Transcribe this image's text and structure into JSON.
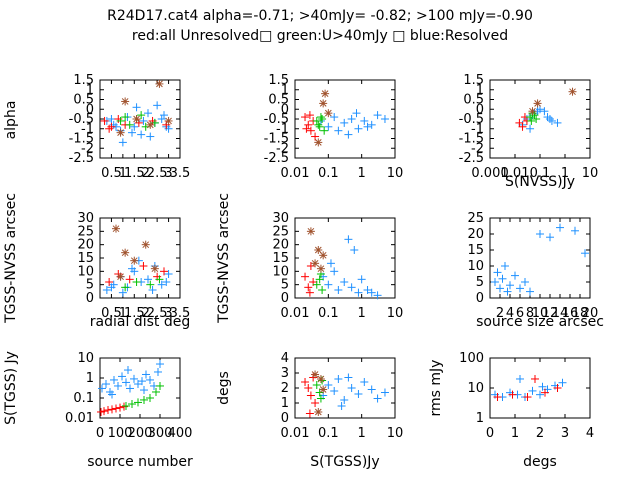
{
  "title_line1": "R24D17.cat4 alpha=-0.71; >40mJy= -0.82; >100 mJy=-0.90",
  "title_line2": "red:all Unresolved□ green:U>40mJy □ blue:Resolved",
  "colors": {
    "red": "#ff0000",
    "green": "#00c000",
    "blue": "#1e90ff",
    "brown": "#a0522d"
  },
  "chart_data": [
    {
      "type": "scatter",
      "title": "",
      "xlabel": "",
      "ylabel": "alpha",
      "xlim": [
        0,
        3.5
      ],
      "ylim": [
        -2.5,
        1.5
      ],
      "xticks": [
        0.5,
        1,
        1.5,
        2,
        2.5,
        3,
        3.5
      ],
      "xticklabels": [
        "0.5",
        "1",
        "1.5",
        "2",
        "2.5",
        "3",
        "3.5"
      ],
      "yticks": [
        -2.5,
        -2,
        -1.5,
        -1,
        -0.5,
        0,
        0.5,
        1,
        1.5
      ],
      "yticklabels": [
        "-2.5",
        "-2",
        "-1.5",
        "-1",
        "-0.5",
        "0",
        "0.5",
        "1",
        "1.5"
      ],
      "series": [
        {
          "color": "blue",
          "marker": "+",
          "x": [
            0.3,
            0.6,
            0.9,
            1.2,
            1.5,
            1.8,
            2.1,
            2.4,
            2.7,
            3.0,
            1.0,
            1.6,
            2.2,
            2.8,
            0.7,
            1.4,
            2.5,
            1.9,
            2.9,
            0.5
          ],
          "y": [
            -0.6,
            -0.8,
            -1.1,
            -0.4,
            -0.9,
            -1.3,
            -0.2,
            -0.7,
            -0.5,
            -1.0,
            -1.7,
            0.1,
            -1.4,
            -0.3,
            -0.9,
            -1.2,
            0.2,
            -0.6,
            -0.9,
            -0.5
          ]
        },
        {
          "color": "red",
          "marker": "+",
          "x": [
            0.2,
            0.5,
            0.8,
            1.1,
            1.7,
            2.3,
            2.9,
            0.4
          ],
          "y": [
            -0.6,
            -0.9,
            -0.5,
            -0.8,
            -0.7,
            -0.6,
            -0.8,
            -1.0
          ]
        },
        {
          "color": "green",
          "marker": "+",
          "x": [
            0.9,
            1.3,
            1.6,
            2.0,
            2.4,
            1.1,
            1.8
          ],
          "y": [
            -0.6,
            -0.8,
            -0.5,
            -0.9,
            -0.7,
            -0.4,
            -0.3
          ]
        },
        {
          "color": "brown",
          "marker": "*",
          "x": [
            1.1,
            2.6,
            1.6,
            2.2,
            0.9,
            3.0
          ],
          "y": [
            0.4,
            1.3,
            -0.5,
            -0.8,
            -1.2,
            -0.6
          ]
        }
      ]
    },
    {
      "type": "scatter",
      "title": "",
      "xlabel": "",
      "ylabel": "",
      "xscale": "log",
      "xlim": [
        0.01,
        10
      ],
      "ylim": [
        -2.5,
        1.5
      ],
      "xticks": [
        0.01,
        0.1,
        1,
        10
      ],
      "xticklabels": [
        "0.01",
        "0.1",
        "1",
        "10"
      ],
      "yticks": [
        -2.5,
        -2,
        -1.5,
        -1,
        -0.5,
        0,
        0.5,
        1,
        1.5
      ],
      "yticklabels": [
        "-2.5",
        "-2",
        "-1.5",
        "-1",
        "-0.5",
        "0",
        "0.5",
        "1",
        "1.5"
      ],
      "series": [
        {
          "color": "blue",
          "marker": "+",
          "x": [
            0.06,
            0.1,
            0.15,
            0.2,
            0.3,
            0.5,
            0.8,
            1.2,
            2,
            3,
            5,
            0.4,
            0.7,
            1.5
          ],
          "y": [
            -0.6,
            -0.9,
            -0.4,
            -1.1,
            -0.7,
            -0.5,
            -1.0,
            -0.6,
            -0.8,
            -0.3,
            -0.5,
            -1.3,
            -0.2,
            -0.9
          ]
        },
        {
          "color": "red",
          "marker": "+",
          "x": [
            0.02,
            0.025,
            0.03,
            0.035,
            0.04,
            0.028,
            0.022
          ],
          "y": [
            -0.4,
            -0.8,
            -1.1,
            -0.6,
            -1.4,
            -0.3,
            -1.0
          ]
        },
        {
          "color": "green",
          "marker": "+",
          "x": [
            0.045,
            0.055,
            0.065,
            0.075,
            0.06,
            0.05
          ],
          "y": [
            -0.6,
            -0.9,
            -0.5,
            -1.1,
            -0.4,
            -0.8
          ]
        },
        {
          "color": "brown",
          "marker": "*",
          "x": [
            0.08,
            0.07,
            0.1,
            0.05
          ],
          "y": [
            0.8,
            0.3,
            -0.2,
            -1.7
          ]
        }
      ]
    },
    {
      "type": "scatter",
      "title": "",
      "xlabel": "S(NVSS)Jy",
      "ylabel": "",
      "xscale": "log",
      "xlim": [
        0.001,
        10
      ],
      "ylim": [
        -2.5,
        1.5
      ],
      "xticks": [
        0.001,
        0.01,
        0.1,
        1,
        10
      ],
      "xticklabels": [
        "0.001",
        "0.01",
        "0.1",
        "1",
        "10"
      ],
      "yticks": [
        -2.5,
        -2,
        -1.5,
        -1,
        -0.5,
        0,
        0.5,
        1,
        1.5
      ],
      "yticklabels": [
        "-2.5",
        "-2",
        "-1.5",
        "-1",
        "-0.5",
        "0",
        "0.5",
        "1",
        "1.5"
      ],
      "series": [
        {
          "color": "blue",
          "marker": "+",
          "x": [
            0.02,
            0.03,
            0.05,
            0.08,
            0.1,
            0.2,
            0.3,
            0.5,
            0.04,
            0.06,
            0.15,
            0.25
          ],
          "y": [
            -0.8,
            -0.5,
            -0.3,
            -0.1,
            0.0,
            -0.4,
            -0.6,
            -0.7,
            -1.0,
            -0.2,
            -0.1,
            -0.5
          ]
        },
        {
          "color": "red",
          "marker": "+",
          "x": [
            0.015,
            0.02,
            0.025,
            0.03
          ],
          "y": [
            -0.7,
            -0.9,
            -0.4,
            -0.6
          ]
        },
        {
          "color": "green",
          "marker": "+",
          "x": [
            0.04,
            0.05,
            0.06,
            0.07,
            0.045
          ],
          "y": [
            -0.4,
            -0.2,
            -0.3,
            -0.5,
            -0.6
          ]
        },
        {
          "color": "brown",
          "marker": "*",
          "x": [
            0.08,
            2.0,
            0.05
          ],
          "y": [
            0.3,
            0.9,
            -0.1
          ]
        }
      ]
    },
    {
      "type": "scatter",
      "title": "",
      "xlabel": "radial dist deg",
      "ylabel": "TGSS-NVSS arcsec",
      "xlim": [
        0,
        3.5
      ],
      "ylim": [
        0,
        30
      ],
      "xticks": [
        0.5,
        1,
        1.5,
        2,
        2.5,
        3,
        3.5
      ],
      "xticklabels": [
        "0.5",
        "1",
        "1.5",
        "2",
        "2.5",
        "3",
        "3.5"
      ],
      "yticks": [
        0,
        5,
        10,
        15,
        20,
        25,
        30
      ],
      "yticklabels": [
        "0",
        "5",
        "10",
        "15",
        "20",
        "25",
        "30"
      ],
      "series": [
        {
          "color": "blue",
          "marker": "+",
          "x": [
            0.3,
            0.6,
            0.9,
            1.2,
            1.5,
            1.8,
            2.1,
            2.4,
            2.7,
            3.0,
            1.0,
            1.7,
            2.3,
            2.9,
            0.5,
            1.4
          ],
          "y": [
            3,
            5,
            8,
            4,
            10,
            6,
            7,
            12,
            5,
            9,
            2,
            14,
            3,
            6,
            4,
            11
          ]
        },
        {
          "color": "red",
          "marker": "+",
          "x": [
            0.4,
            0.8,
            1.3,
            1.9,
            2.5,
            2.8
          ],
          "y": [
            6,
            9,
            7,
            12,
            8,
            10
          ]
        },
        {
          "color": "green",
          "marker": "+",
          "x": [
            1.1,
            1.6,
            2.2,
            2.6
          ],
          "y": [
            4,
            6,
            5,
            7
          ]
        },
        {
          "color": "brown",
          "marker": "*",
          "x": [
            0.7,
            1.1,
            1.5,
            2.0,
            2.4,
            0.9
          ],
          "y": [
            26,
            17,
            14,
            20,
            11,
            8
          ]
        }
      ]
    },
    {
      "type": "scatter",
      "title": "",
      "xlabel": "",
      "ylabel": "TGSS-NVSS arcsec",
      "xscale": "log",
      "xlim": [
        0.01,
        10
      ],
      "ylim": [
        0,
        30
      ],
      "xticks": [
        0.01,
        0.1,
        1,
        10
      ],
      "xticklabels": [
        "0.01",
        "0.1",
        "1",
        "10"
      ],
      "yticks": [
        0,
        5,
        10,
        15,
        20,
        25,
        30
      ],
      "yticklabels": [
        "0",
        "5",
        "10",
        "15",
        "20",
        "25",
        "30"
      ],
      "series": [
        {
          "color": "blue",
          "marker": "+",
          "x": [
            0.07,
            0.1,
            0.15,
            0.2,
            0.3,
            0.5,
            0.8,
            1.0,
            1.5,
            2,
            3,
            0.4,
            0.12,
            0.6
          ],
          "y": [
            8,
            5,
            10,
            3,
            6,
            4,
            2,
            7,
            3,
            2,
            1,
            22,
            13,
            18
          ]
        },
        {
          "color": "red",
          "marker": "+",
          "x": [
            0.02,
            0.025,
            0.03,
            0.035,
            0.028
          ],
          "y": [
            8,
            4,
            12,
            6,
            2
          ]
        },
        {
          "color": "green",
          "marker": "+",
          "x": [
            0.045,
            0.055,
            0.065,
            0.06
          ],
          "y": [
            5,
            7,
            3,
            9
          ]
        },
        {
          "color": "brown",
          "marker": "*",
          "x": [
            0.05,
            0.07,
            0.04,
            0.06,
            0.03
          ],
          "y": [
            18,
            16,
            13,
            11,
            25
          ]
        }
      ]
    },
    {
      "type": "scatter",
      "title": "",
      "xlabel": "source size arcsec",
      "ylabel": "",
      "xlim": [
        0,
        20
      ],
      "ylim": [
        0,
        25
      ],
      "xticks": [
        2,
        4,
        6,
        8,
        10,
        12,
        14,
        16,
        18,
        20
      ],
      "xticklabels": [
        "2",
        "4",
        "6",
        "8",
        "10",
        "12",
        "14",
        "16",
        "18",
        "20"
      ],
      "yticks": [
        0,
        5,
        10,
        15,
        20,
        25
      ],
      "yticklabels": [
        "0",
        "5",
        "10",
        "15",
        "20",
        "25"
      ],
      "series": [
        {
          "color": "blue",
          "marker": "+",
          "x": [
            1,
            1.5,
            2,
            2.5,
            3,
            3.5,
            4,
            5,
            6,
            7,
            8,
            10,
            12,
            14,
            17,
            19
          ],
          "y": [
            5,
            8,
            3,
            6,
            10,
            2,
            4,
            7,
            3,
            5,
            2,
            20,
            19,
            22,
            21,
            14
          ]
        }
      ]
    },
    {
      "type": "scatter",
      "title": "",
      "xlabel": "source number",
      "ylabel": "S(TGSS) Jy",
      "yscale": "log",
      "xlim": [
        0,
        400
      ],
      "ylim": [
        0.01,
        10
      ],
      "xticks": [
        0,
        100,
        200,
        300,
        400
      ],
      "xticklabels": [
        "0",
        "100",
        "200",
        "300",
        "400"
      ],
      "yticks": [
        0.01,
        0.1,
        1,
        10
      ],
      "yticklabels": [
        "0.01",
        "0.1",
        "1",
        "10"
      ],
      "series": [
        {
          "color": "blue",
          "marker": "+",
          "x": [
            10,
            30,
            50,
            70,
            90,
            110,
            130,
            150,
            170,
            190,
            210,
            230,
            250,
            270,
            290,
            300,
            60,
            140,
            220
          ],
          "y": [
            0.3,
            0.5,
            0.2,
            0.8,
            0.4,
            1.2,
            0.6,
            0.3,
            0.9,
            0.5,
            0.7,
            1.5,
            0.8,
            0.4,
            2.0,
            5.0,
            0.15,
            2.5,
            0.25
          ]
        },
        {
          "color": "red",
          "marker": "+",
          "x": [
            5,
            20,
            40,
            60,
            80,
            100,
            120
          ],
          "y": [
            0.02,
            0.022,
            0.025,
            0.027,
            0.03,
            0.033,
            0.037
          ]
        },
        {
          "color": "green",
          "marker": "+",
          "x": [
            130,
            160,
            190,
            220,
            250,
            280,
            300
          ],
          "y": [
            0.04,
            0.05,
            0.06,
            0.08,
            0.1,
            0.2,
            0.4
          ]
        }
      ]
    },
    {
      "type": "scatter",
      "title": "",
      "xlabel": "S(TGSS)Jy",
      "ylabel": "degs",
      "xscale": "log",
      "xlim": [
        0.01,
        10
      ],
      "ylim": [
        0,
        4
      ],
      "xticks": [
        0.01,
        0.1,
        1,
        10
      ],
      "xticklabels": [
        "0.01",
        "0.1",
        "1",
        "10"
      ],
      "yticks": [
        0,
        1,
        2,
        3,
        4
      ],
      "yticklabels": [
        "0",
        "1",
        "2",
        "3",
        "4"
      ],
      "series": [
        {
          "color": "blue",
          "marker": "+",
          "x": [
            0.07,
            0.1,
            0.15,
            0.2,
            0.3,
            0.5,
            0.8,
            1.2,
            2,
            3,
            5,
            0.4,
            0.25
          ],
          "y": [
            1.5,
            2.2,
            1.8,
            2.6,
            1.2,
            2.0,
            1.6,
            2.4,
            1.9,
            1.3,
            1.7,
            2.7,
            0.8
          ]
        },
        {
          "color": "red",
          "marker": "+",
          "x": [
            0.02,
            0.025,
            0.03,
            0.035,
            0.04,
            0.028
          ],
          "y": [
            2.4,
            2.0,
            1.5,
            2.7,
            1.0,
            0.3
          ]
        },
        {
          "color": "green",
          "marker": "+",
          "x": [
            0.045,
            0.055,
            0.065,
            0.06
          ],
          "y": [
            2.2,
            1.7,
            2.5,
            1.3
          ]
        },
        {
          "color": "brown",
          "marker": "*",
          "x": [
            0.04,
            0.06,
            0.05,
            0.07
          ],
          "y": [
            2.9,
            2.6,
            0.4,
            1.9
          ]
        }
      ]
    },
    {
      "type": "scatter",
      "title": "",
      "xlabel": "degs",
      "ylabel": "rms mJy",
      "yscale": "log",
      "xlim": [
        0,
        4
      ],
      "ylim": [
        1,
        100
      ],
      "xticks": [
        0,
        1,
        2,
        3,
        4
      ],
      "xticklabels": [
        "0",
        "1",
        "2",
        "3",
        "4"
      ],
      "yticks": [
        1,
        10,
        100
      ],
      "yticklabels": [
        "1",
        "10",
        "100"
      ],
      "series": [
        {
          "color": "blue",
          "marker": "+",
          "x": [
            0.2,
            0.5,
            0.8,
            1.1,
            1.4,
            1.7,
            2.0,
            2.3,
            2.6,
            2.9,
            1.2,
            2.1
          ],
          "y": [
            6,
            5,
            7,
            6,
            5,
            8,
            6,
            9,
            12,
            15,
            20,
            11
          ]
        },
        {
          "color": "red",
          "marker": "+",
          "x": [
            0.3,
            0.9,
            1.5,
            2.2,
            2.7,
            1.8
          ],
          "y": [
            5,
            6,
            5,
            7,
            10,
            20
          ]
        }
      ]
    }
  ]
}
